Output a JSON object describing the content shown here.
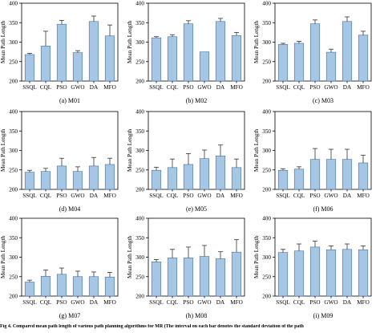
{
  "figure_caption": "Fig 4.  Compared mean path length of various path planning algorithms for MR (The interval on each bar denotes the standard deviation of the path",
  "ylabel": "Mean Path Length",
  "categories": [
    "SSQL",
    "CQL",
    "PSO",
    "GWO",
    "DA",
    "MFO"
  ],
  "colors": {
    "bar": "#a5c7e5",
    "bar_edge": "#4a6f93",
    "error": "#333333",
    "axis": "#000000"
  },
  "chart_data": [
    {
      "type": "bar",
      "subtitle": "(a) M01",
      "ylabel": "Mean Path Length",
      "categories": [
        "SSQL",
        "CQL",
        "PSO",
        "GWO",
        "DA",
        "MFO"
      ],
      "yticks": [
        200,
        250,
        300,
        350,
        400
      ],
      "ylim": [
        200,
        400
      ],
      "values": [
        268,
        290,
        346,
        273,
        353,
        316
      ],
      "errors": [
        3,
        38,
        10,
        5,
        14,
        28
      ]
    },
    {
      "type": "bar",
      "subtitle": "(b) M02",
      "ylabel": "Mean Path Length",
      "categories": [
        "SSQL",
        "CQL",
        "PSO",
        "GWO",
        "DA",
        "MFO"
      ],
      "yticks": [
        200,
        250,
        300,
        350,
        400
      ],
      "ylim": [
        200,
        400
      ],
      "values": [
        311,
        314,
        347,
        275,
        353,
        317
      ],
      "errors": [
        3,
        5,
        8,
        0,
        8,
        8
      ]
    },
    {
      "type": "bar",
      "subtitle": "(c) M03",
      "ylabel": "Mean Path Length",
      "categories": [
        "SSQL",
        "CQL",
        "PSO",
        "GWO",
        "DA",
        "MFO"
      ],
      "yticks": [
        200,
        250,
        300,
        350,
        400
      ],
      "ylim": [
        200,
        400
      ],
      "values": [
        294,
        297,
        347,
        274,
        353,
        318
      ],
      "errors": [
        3,
        5,
        10,
        8,
        12,
        10
      ]
    },
    {
      "type": "bar",
      "subtitle": "(d) M04",
      "ylabel": "Mean Path Length",
      "categories": [
        "SSQL",
        "CQL",
        "PSO",
        "GWO",
        "DA",
        "MFO"
      ],
      "yticks": [
        200,
        250,
        300,
        350,
        400
      ],
      "ylim": [
        200,
        400
      ],
      "values": [
        244,
        246,
        260,
        246,
        260,
        264
      ],
      "errors": [
        5,
        8,
        20,
        12,
        22,
        16
      ]
    },
    {
      "type": "bar",
      "subtitle": "(e) M05",
      "ylabel": "Mean Path Length",
      "categories": [
        "SSQL",
        "CQL",
        "PSO",
        "GWO",
        "DA",
        "MFO"
      ],
      "yticks": [
        200,
        250,
        300,
        350,
        400
      ],
      "ylim": [
        200,
        400
      ],
      "values": [
        249,
        256,
        264,
        279,
        286,
        256
      ],
      "errors": [
        8,
        22,
        28,
        22,
        28,
        22
      ]
    },
    {
      "type": "bar",
      "subtitle": "(f) M06",
      "ylabel": "Mean Path Length",
      "categories": [
        "SSQL",
        "CQL",
        "PSO",
        "GWO",
        "DA",
        "MFO"
      ],
      "yticks": [
        200,
        250,
        300,
        350,
        400
      ],
      "ylim": [
        200,
        400
      ],
      "values": [
        249,
        252,
        277,
        277,
        277,
        268
      ],
      "errors": [
        4,
        6,
        28,
        26,
        26,
        20
      ]
    },
    {
      "type": "bar",
      "subtitle": "(g) M07",
      "ylabel": "Mean Path Length",
      "categories": [
        "SSQL",
        "CQL",
        "PSO",
        "GWO",
        "DA",
        "MFO"
      ],
      "yticks": [
        200,
        250,
        300,
        350,
        400
      ],
      "ylim": [
        200,
        400
      ],
      "values": [
        236,
        251,
        256,
        250,
        250,
        249
      ],
      "errors": [
        5,
        16,
        16,
        14,
        12,
        12
      ]
    },
    {
      "type": "bar",
      "subtitle": "(h) M08",
      "ylabel": "Mean Path Length",
      "categories": [
        "SSQL",
        "CQL",
        "PSO",
        "GWO",
        "DA",
        "MFO"
      ],
      "yticks": [
        200,
        250,
        300,
        350,
        400
      ],
      "ylim": [
        200,
        400
      ],
      "values": [
        288,
        298,
        298,
        302,
        296,
        313
      ],
      "errors": [
        6,
        22,
        28,
        28,
        18,
        32
      ]
    },
    {
      "type": "bar",
      "subtitle": "(i) M09",
      "ylabel": "Mean Path Length",
      "categories": [
        "SSQL",
        "CQL",
        "PSO",
        "GWO",
        "DA",
        "MFO"
      ],
      "yticks": [
        200,
        250,
        300,
        350,
        400
      ],
      "ylim": [
        200,
        400
      ],
      "values": [
        312,
        316,
        326,
        319,
        320,
        319
      ],
      "errors": [
        8,
        18,
        15,
        10,
        14,
        10
      ]
    }
  ]
}
